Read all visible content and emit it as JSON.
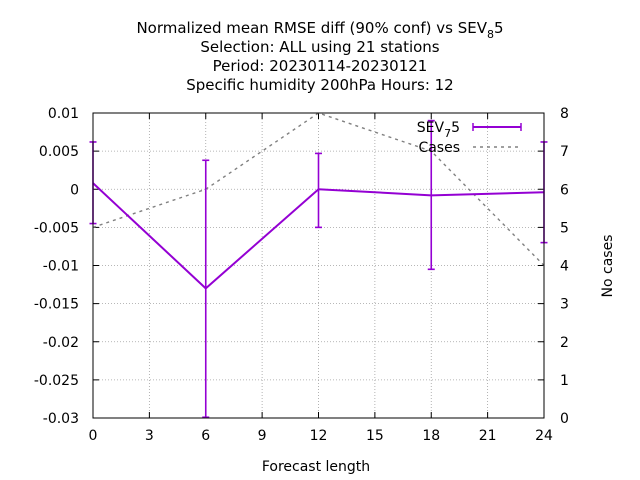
{
  "chart_data": {
    "type": "line",
    "title_lines": [
      "Normalized mean RMSE diff (90% conf) vs SEV",
      "Selection: ALL using    21 stations",
      "Period: 20230114-20230121",
      "Specific humidity 200hPa   Hours:  12"
    ],
    "title_sub": {
      "base": "SEV",
      "sub": "8",
      "tail": "5"
    },
    "xlabel": "Forecast length",
    "ylabel": "",
    "y2label": "No cases",
    "xlim": [
      0,
      24
    ],
    "ylim": [
      -0.03,
      0.01
    ],
    "y2lim": [
      0,
      8
    ],
    "xticks": [
      0,
      3,
      6,
      9,
      12,
      15,
      18,
      21,
      24
    ],
    "yticks": [
      0.01,
      0.005,
      0,
      -0.005,
      -0.01,
      -0.015,
      -0.02,
      -0.025,
      -0.03
    ],
    "ytick_labels": [
      "0.01",
      "0.005",
      "0",
      "-0.005",
      "-0.01",
      "-0.015",
      "-0.02",
      "-0.025",
      "-0.03"
    ],
    "y2ticks": [
      0,
      1,
      2,
      3,
      4,
      5,
      6,
      7,
      8
    ],
    "grid": true,
    "legend_position": "top-right",
    "series": [
      {
        "name": "SEV75",
        "legend": {
          "base": "SEV",
          "sub": "7",
          "tail": "5"
        },
        "axis": "y",
        "color": "#9400d3",
        "x": [
          0,
          6,
          12,
          18,
          24
        ],
        "y": [
          0.0008,
          -0.013,
          0.0,
          -0.0008,
          -0.0004
        ],
        "err_low": [
          -0.0045,
          -0.0299,
          -0.005,
          -0.0105,
          -0.007
        ],
        "err_high": [
          0.0062,
          0.0038,
          0.0047,
          0.009,
          0.0062
        ]
      },
      {
        "name": "Cases",
        "axis": "y2",
        "color": "#808080",
        "dashed": true,
        "x": [
          0,
          6,
          12,
          18,
          24
        ],
        "y": [
          5,
          6,
          8,
          7,
          4
        ]
      }
    ]
  }
}
